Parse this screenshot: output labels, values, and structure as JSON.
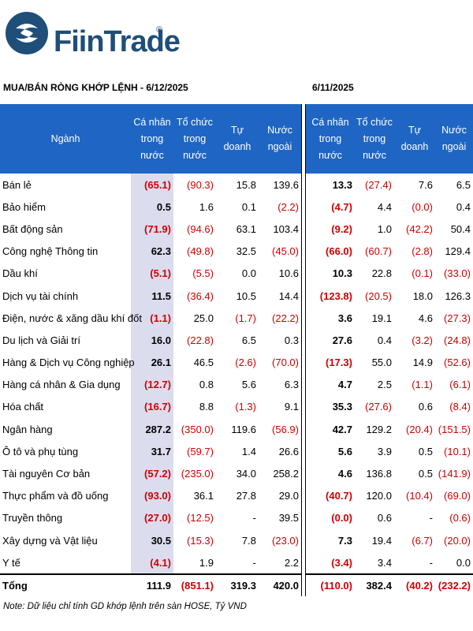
{
  "brand": {
    "name": "FiinTrade",
    "reg": "®",
    "color": "#1f4e79"
  },
  "left_title": "MUA/BÁN RÒNG KHỚP LỆNH - 6/12/2025",
  "right_title": "6/11/2025",
  "headers": {
    "sector": "Ngành",
    "individual": "Cá nhân trong nước",
    "institution": "Tổ chức trong nước",
    "proprietary": "Tự doanh",
    "foreign": "Nước ngoài"
  },
  "colors": {
    "header_bg": "#1f66c4",
    "negative": "#d00000",
    "highlight": "#dcdcef"
  },
  "rows": [
    {
      "name": "Bán lẻ",
      "l": [
        "(65.1)",
        "(90.3)",
        "15.8",
        "139.6"
      ],
      "r": [
        "13.3",
        "(27.4)",
        "7.6",
        "6.5"
      ]
    },
    {
      "name": "Bảo hiểm",
      "l": [
        "0.5",
        "1.6",
        "0.1",
        "(2.2)"
      ],
      "r": [
        "(4.7)",
        "4.4",
        "(0.0)",
        "0.4"
      ]
    },
    {
      "name": "Bất động sản",
      "l": [
        "(71.9)",
        "(94.6)",
        "63.1",
        "103.4"
      ],
      "r": [
        "(9.2)",
        "1.0",
        "(42.2)",
        "50.4"
      ]
    },
    {
      "name": "Công nghệ Thông tin",
      "l": [
        "62.3",
        "(49.8)",
        "32.5",
        "(45.0)"
      ],
      "r": [
        "(66.0)",
        "(60.7)",
        "(2.8)",
        "129.4"
      ]
    },
    {
      "name": "Dầu khí",
      "l": [
        "(5.1)",
        "(5.5)",
        "0.0",
        "10.6"
      ],
      "r": [
        "10.3",
        "22.8",
        "(0.1)",
        "(33.0)"
      ]
    },
    {
      "name": "Dịch vụ tài chính",
      "l": [
        "11.5",
        "(36.4)",
        "10.5",
        "14.4"
      ],
      "r": [
        "(123.8)",
        "(20.5)",
        "18.0",
        "126.3"
      ]
    },
    {
      "name": "Điện, nước & xăng dầu khí đốt",
      "l": [
        "(1.1)",
        "25.0",
        "(1.7)",
        "(22.2)"
      ],
      "r": [
        "3.6",
        "19.1",
        "4.6",
        "(27.3)"
      ]
    },
    {
      "name": "Du lịch và Giải trí",
      "l": [
        "16.0",
        "(22.8)",
        "6.5",
        "0.3"
      ],
      "r": [
        "27.6",
        "0.4",
        "(3.2)",
        "(24.8)"
      ]
    },
    {
      "name": "Hàng & Dịch vụ Công nghiệp",
      "l": [
        "26.1",
        "46.5",
        "(2.6)",
        "(70.0)"
      ],
      "r": [
        "(17.3)",
        "55.0",
        "14.9",
        "(52.6)"
      ]
    },
    {
      "name": "Hàng cá nhân & Gia dụng",
      "l": [
        "(12.7)",
        "0.8",
        "5.6",
        "6.3"
      ],
      "r": [
        "4.7",
        "2.5",
        "(1.1)",
        "(6.1)"
      ]
    },
    {
      "name": "Hóa chất",
      "l": [
        "(16.7)",
        "8.8",
        "(1.3)",
        "9.1"
      ],
      "r": [
        "35.3",
        "(27.6)",
        "0.6",
        "(8.4)"
      ]
    },
    {
      "name": "Ngân hàng",
      "l": [
        "287.2",
        "(350.0)",
        "119.6",
        "(56.9)"
      ],
      "r": [
        "42.7",
        "129.2",
        "(20.4)",
        "(151.5)"
      ]
    },
    {
      "name": "Ô tô và phụ tùng",
      "l": [
        "31.7",
        "(59.7)",
        "1.4",
        "26.6"
      ],
      "r": [
        "5.6",
        "3.9",
        "0.5",
        "(10.1)"
      ]
    },
    {
      "name": "Tài nguyên Cơ bản",
      "l": [
        "(57.2)",
        "(235.0)",
        "34.0",
        "258.2"
      ],
      "r": [
        "4.6",
        "136.8",
        "0.5",
        "(141.9)"
      ]
    },
    {
      "name": "Thực phẩm và đồ uống",
      "l": [
        "(93.0)",
        "36.1",
        "27.8",
        "29.0"
      ],
      "r": [
        "(40.7)",
        "120.0",
        "(10.4)",
        "(69.0)"
      ]
    },
    {
      "name": "Truyền thông",
      "l": [
        "(27.0)",
        "(12.5)",
        "-",
        "39.5"
      ],
      "r": [
        "(0.0)",
        "0.6",
        "-",
        "(0.6)"
      ]
    },
    {
      "name": "Xây dựng và Vật liệu",
      "l": [
        "30.5",
        "(15.3)",
        "7.8",
        "(23.0)"
      ],
      "r": [
        "7.3",
        "19.4",
        "(6.7)",
        "(20.0)"
      ]
    },
    {
      "name": "Y tế",
      "l": [
        "(4.1)",
        "1.9",
        "-",
        "2.2"
      ],
      "r": [
        "(3.4)",
        "3.4",
        "-",
        "0.0"
      ]
    }
  ],
  "total": {
    "name": "Tổng",
    "l": [
      "111.9",
      "(851.1)",
      "319.3",
      "420.0"
    ],
    "r": [
      "(110.0)",
      "382.4",
      "(40.2)",
      "(232.2)"
    ]
  },
  "note": "Note: Dữ liệu chỉ tính GD khớp lệnh trên sàn HOSE, Tỷ VND"
}
